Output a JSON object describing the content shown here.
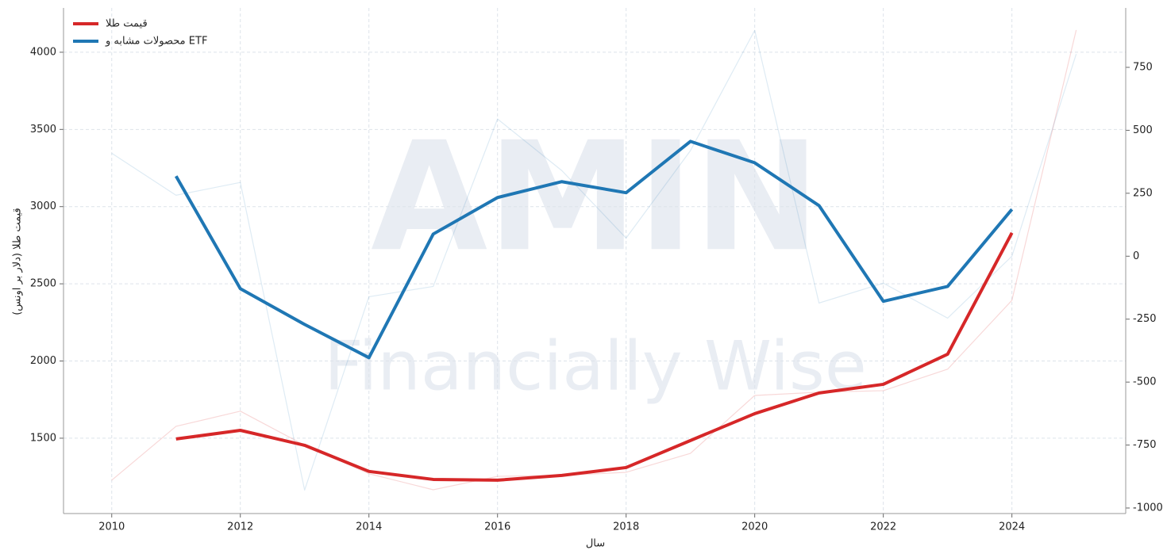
{
  "chart_data": {
    "type": "line",
    "watermark": [
      "AMIN",
      "Financially Wise"
    ],
    "xlabel": "سال",
    "ylabel": "قیمت طلا (دلار بر اونس)",
    "xlim": [
      2009.25,
      2025.77
    ],
    "xticks": [
      2010,
      2012,
      2014,
      2016,
      2018,
      2020,
      2022,
      2024
    ],
    "ylim": [
      1012,
      4287
    ],
    "yticks": [
      1500,
      2000,
      2500,
      3000,
      3500,
      4000
    ],
    "y2lim": [
      -1022,
      986
    ],
    "y2ticks": [
      -1000,
      -750,
      -500,
      -250,
      0,
      250,
      500,
      750
    ],
    "grid": true,
    "legend": "upper left",
    "series": [
      {
        "color": "#d62728",
        "opacity": 0.18,
        "width": 1.2,
        "x": [
          2010,
          2011,
          2012,
          2013,
          2014,
          2015,
          2016,
          2017,
          2018,
          2019,
          2020,
          2021,
          2022,
          2023,
          2024,
          2025
        ],
        "values": [
          1228,
          1577,
          1675,
          1454,
          1270,
          1166,
          1253,
          1259,
          1279,
          1402,
          1777,
          1798,
          1808,
          1947,
          2393,
          4144
        ]
      },
      {
        "color": "#1f77b4",
        "opacity": 0.15,
        "width": 1.2,
        "axis": "y2",
        "x": [
          2010,
          2011,
          2012,
          2013,
          2014,
          2015,
          2016,
          2017,
          2018,
          2019,
          2020,
          2021,
          2022,
          2023,
          2024,
          2025
        ],
        "values": [
          409,
          242,
          293,
          -929,
          -161,
          -120,
          545,
          340,
          72,
          419,
          897,
          -186,
          -107,
          -246,
          0,
          803
        ]
      },
      {
        "name": "قیمت طلا",
        "color": "#d62728",
        "opacity": 1,
        "width": 4,
        "x": [
          2011,
          2012,
          2013,
          2014,
          2015,
          2016,
          2017,
          2018,
          2019,
          2020,
          2021,
          2022,
          2023,
          2024
        ],
        "values": [
          1495,
          1551,
          1454,
          1285,
          1233,
          1228,
          1259,
          1310,
          1485,
          1659,
          1793,
          1849,
          2044,
          2830
        ]
      },
      {
        "name": "محصولات مشابه و ETF",
        "color": "#1f77b4",
        "opacity": 1,
        "width": 4,
        "axis": "y2",
        "x": [
          2011,
          2012,
          2013,
          2014,
          2015,
          2016,
          2017,
          2018,
          2019,
          2020,
          2021,
          2022,
          2023,
          2024
        ],
        "values": [
          318,
          -129,
          -271,
          -403,
          88,
          233,
          296,
          252,
          456,
          371,
          201,
          -179,
          -120,
          186
        ]
      }
    ]
  }
}
